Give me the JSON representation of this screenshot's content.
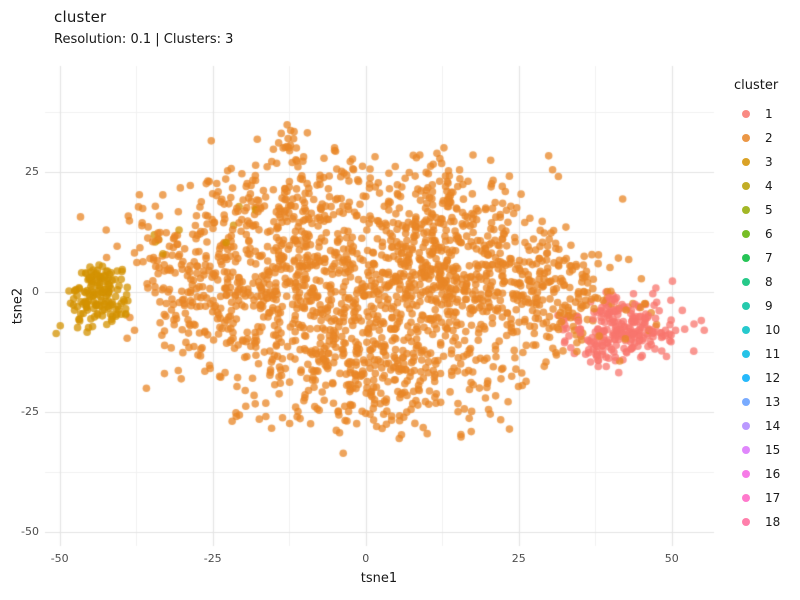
{
  "header": {
    "title": "cluster",
    "subtitle": "Resolution: 0.1 | Clusters: 3"
  },
  "chart_data": {
    "type": "scatter",
    "title": "cluster",
    "subtitle": "Resolution: 0.1 | Clusters: 3",
    "xlabel": "tsne1",
    "ylabel": "tsne2",
    "xlim": [
      -52.4,
      56.9
    ],
    "ylim": [
      -52.9,
      47.1
    ],
    "x_ticks": [
      -50,
      -25,
      0,
      25,
      50
    ],
    "y_ticks": [
      25,
      0,
      -25,
      -50
    ],
    "x_minor_ticks": [
      -37.5,
      -12.5,
      12.5,
      37.5
    ],
    "y_minor_ticks": [
      37.5,
      12.5,
      -12.5,
      -37.5
    ],
    "grid": "on",
    "legend_position": "right",
    "legend_title": "cluster",
    "legend_items": [
      {
        "label": "1",
        "color": "#F8766D"
      },
      {
        "label": "2",
        "color": "#E88526"
      },
      {
        "label": "3",
        "color": "#D39200"
      },
      {
        "label": "4",
        "color": "#B79F00"
      },
      {
        "label": "5",
        "color": "#93AA00"
      },
      {
        "label": "6",
        "color": "#5EB300"
      },
      {
        "label": "7",
        "color": "#00BA38"
      },
      {
        "label": "8",
        "color": "#00BF74"
      },
      {
        "label": "9",
        "color": "#00C19F"
      },
      {
        "label": "10",
        "color": "#00BFC4"
      },
      {
        "label": "11",
        "color": "#00B9E3"
      },
      {
        "label": "12",
        "color": "#00ADFA"
      },
      {
        "label": "13",
        "color": "#619CFF"
      },
      {
        "label": "14",
        "color": "#AE87FF"
      },
      {
        "label": "15",
        "color": "#DB72FB"
      },
      {
        "label": "16",
        "color": "#F564E3"
      },
      {
        "label": "17",
        "color": "#FF61C3"
      },
      {
        "label": "18",
        "color": "#FF699C"
      }
    ],
    "point_style": {
      "radius": 3.8,
      "alpha": 0.75
    },
    "seed": 20,
    "series": [
      {
        "name": "2",
        "color": "#E88526",
        "blobs": [
          {
            "cx": -18,
            "cy": 6,
            "sx": 9,
            "sy": 7.5,
            "n": 280
          },
          {
            "cx": -8,
            "cy": -8,
            "sx": 9,
            "sy": 7.5,
            "n": 280
          },
          {
            "cx": 2,
            "cy": 6,
            "sx": 10,
            "sy": 7.5,
            "n": 300
          },
          {
            "cx": 13,
            "cy": -4,
            "sx": 9,
            "sy": 7.5,
            "n": 260
          },
          {
            "cx": 23,
            "cy": 4,
            "sx": 7.5,
            "sy": 6,
            "n": 180
          },
          {
            "cx": 4,
            "cy": -18,
            "sx": 11,
            "sy": 4.5,
            "n": 170
          },
          {
            "cx": -14,
            "cy": 19,
            "sx": 7,
            "sy": 4,
            "n": 110
          },
          {
            "cx": 14,
            "cy": 16,
            "sx": 7,
            "sy": 4,
            "n": 110
          },
          {
            "cx": 31,
            "cy": -3,
            "sx": 4.5,
            "sy": 5,
            "n": 80
          },
          {
            "cx": -28,
            "cy": -4,
            "sx": 4.5,
            "sy": 6,
            "n": 80
          },
          {
            "cx": -12,
            "cy": 31,
            "sx": 1.7,
            "sy": 2,
            "n": 20
          },
          {
            "cx": -2,
            "cy": -26,
            "sx": 11,
            "sy": 2.5,
            "n": 45
          },
          {
            "cx": 36,
            "cy": 2,
            "sx": 3.5,
            "sy": 3,
            "n": 26
          },
          {
            "cx": 44,
            "cy": -4,
            "sx": 3.5,
            "sy": 3.5,
            "n": 10
          },
          {
            "cx": 2,
            "cy": 25,
            "sx": 12,
            "sy": 2.5,
            "n": 55
          },
          {
            "cx": -34,
            "cy": 8,
            "sx": 3,
            "sy": 4,
            "n": 40
          }
        ]
      },
      {
        "name": "3",
        "color": "#D39200",
        "blobs": [
          {
            "cx": -44,
            "cy": -2,
            "sx": 2.6,
            "sy": 3.2,
            "n": 120
          },
          {
            "cx": -43,
            "cy": 3,
            "sx": 2.2,
            "sy": 2,
            "n": 35
          },
          {
            "cx": -29,
            "cy": 11,
            "sx": 4,
            "sy": 3.5,
            "n": 6
          },
          {
            "cx": -20,
            "cy": 18,
            "sx": 1.5,
            "sy": 1.5,
            "n": 3
          }
        ]
      },
      {
        "name": "1",
        "color": "#F8766D",
        "blobs": [
          {
            "cx": 43,
            "cy": -7,
            "sx": 4,
            "sy": 3.4,
            "n": 200
          },
          {
            "cx": 38,
            "cy": -12,
            "sx": 2.5,
            "sy": 2.5,
            "n": 30
          },
          {
            "cx": 32,
            "cy": -8,
            "sx": 1.8,
            "sy": 2.5,
            "n": 10
          }
        ]
      }
    ]
  },
  "colors": {
    "grid_major": "#E3E3E3",
    "grid_minor": "#F0F0F0",
    "axis_text": "#4D4D4D",
    "background": "#FFFFFF"
  }
}
